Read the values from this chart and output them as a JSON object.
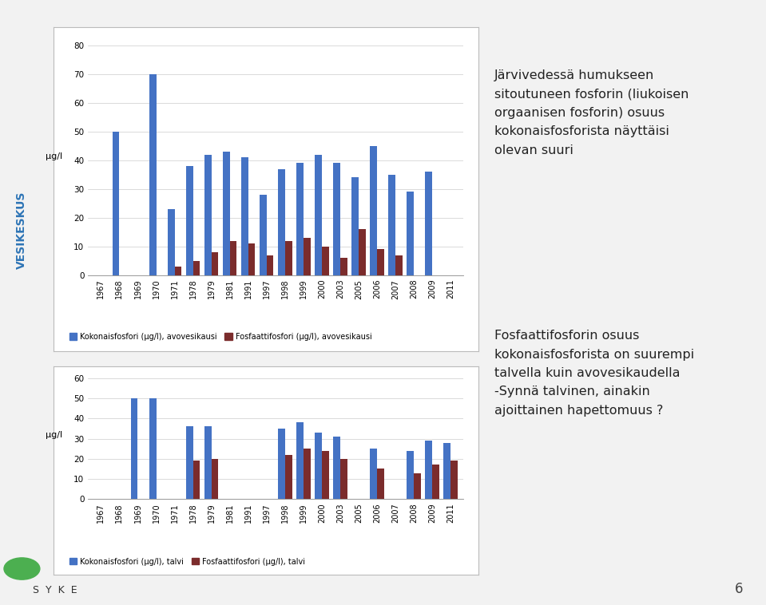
{
  "years": [
    "1967",
    "1968",
    "1969",
    "1970",
    "1971",
    "1978",
    "1979",
    "1981",
    "1991",
    "1997",
    "1998",
    "1999",
    "2000",
    "2003",
    "2005",
    "2006",
    "2007",
    "2008",
    "2009",
    "2011"
  ],
  "chart1": {
    "kokonais": [
      0,
      50,
      0,
      70,
      23,
      38,
      42,
      43,
      41,
      28,
      37,
      39,
      42,
      39,
      34,
      45,
      35,
      29,
      36,
      0
    ],
    "fosfaatti": [
      0,
      0,
      0,
      0,
      3,
      5,
      8,
      12,
      11,
      7,
      12,
      13,
      10,
      6,
      16,
      9,
      7,
      0,
      0,
      0
    ],
    "ylabel": "μg/l",
    "ylim": [
      0,
      80
    ],
    "yticks": [
      0,
      10,
      20,
      30,
      40,
      50,
      60,
      70,
      80
    ],
    "legend1": "Kokonaisfosfori (μg/l), avovesikausi",
    "legend2": "Fosfaattifosfori (μg/l), avovesikausi"
  },
  "chart2": {
    "kokonais": [
      0,
      0,
      50,
      50,
      0,
      36,
      36,
      0,
      0,
      0,
      35,
      38,
      33,
      31,
      0,
      25,
      0,
      24,
      29,
      28
    ],
    "fosfaatti": [
      0,
      0,
      0,
      0,
      0,
      19,
      20,
      0,
      0,
      0,
      22,
      25,
      24,
      20,
      0,
      15,
      0,
      13,
      17,
      19
    ],
    "ylabel": "μg/l",
    "ylim": [
      0,
      60
    ],
    "yticks": [
      0,
      10,
      20,
      30,
      40,
      50,
      60
    ],
    "legend1": "Kokonaisfosfori (μg/l), talvi",
    "legend2": "Fosfaattifosfori (μg/l), talvi"
  },
  "text1_lines": [
    "Järvivedessä humukseen",
    "sitoutuneen fosforin (liukoisen",
    "orgaanisen fosforin) osuus",
    "kokonaisfosforista näyttäisi",
    "olevan suuri"
  ],
  "text2_lines": [
    "Fosfaattifosforin osuus",
    "kokonaisfosforista on suurempi",
    "talvella kuin avovesikaudella",
    "-Synnä talvinen, ainakin",
    "ajoittainen hapettomuus ?"
  ],
  "blue_color": "#4472C4",
  "red_color": "#7B2C2C",
  "slide_bg": "#F2F2F2",
  "left_accent_color": "#4BACD6",
  "vesikeskus_color": "#2E75B6",
  "page_number": "6",
  "bar_width": 0.38
}
